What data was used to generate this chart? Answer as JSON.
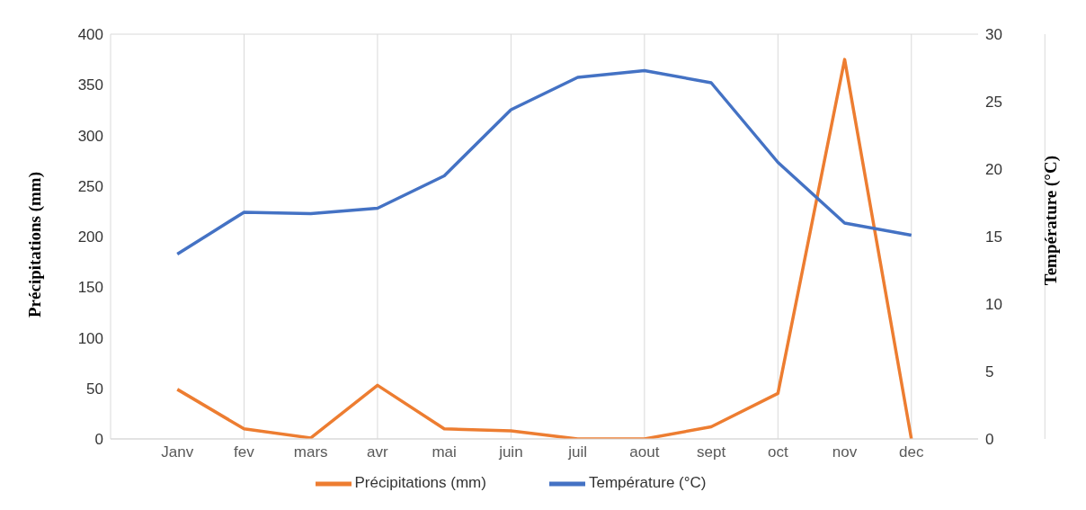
{
  "chart_data": {
    "type": "line",
    "ylabel": "Précipitations (mm)",
    "y2label": "Température (°C)",
    "categories": [
      "Janv",
      "fev",
      "mars",
      "avr",
      "mai",
      "juin",
      "juil",
      "aout",
      "sept",
      "oct",
      "nov",
      "dec"
    ],
    "series": [
      {
        "name": "Précipitations (mm)",
        "color": "#ed7d31",
        "values": [
          49,
          10,
          1,
          53,
          10,
          8,
          0,
          0,
          12,
          45,
          375,
          0
        ]
      },
      {
        "name": "Température (°C)",
        "color": "#4472c4",
        "axis": "y2",
        "values": [
          13.7,
          16.8,
          16.7,
          17.1,
          19.5,
          24.4,
          26.8,
          27.3,
          26.4,
          20.5,
          16.0,
          15.1
        ]
      }
    ],
    "ylim": [
      0,
      400
    ],
    "yticks": [
      0,
      50,
      100,
      150,
      200,
      250,
      300,
      350,
      400
    ],
    "y2lim": [
      0,
      30
    ],
    "y2ticks": [
      0,
      5,
      10,
      15,
      20,
      25,
      30
    ],
    "grid": true,
    "legend": "bottom",
    "marker": "none",
    "line_style": "solid"
  }
}
